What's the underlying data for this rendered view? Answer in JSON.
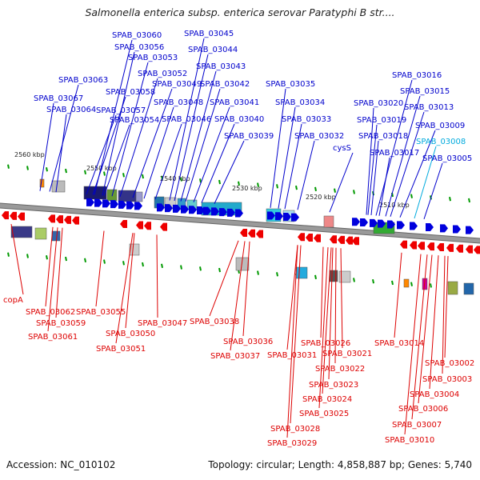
{
  "title": "Salmonella enterica subsp. enterica serovar Paratyphi B str....",
  "footer": {
    "accession": "Accession: NC_010102",
    "summary": "Topology: circular; Length: 4,858,887 bp; Genes: 5,740"
  },
  "colors": {
    "forward_label": "#0000cc",
    "reverse_label": "#dd0000",
    "highlight_label": "#00aadd",
    "forward_arrow": "#0000dd",
    "reverse_arrow": "#ee0000",
    "backbone": "#888888",
    "tick": "#009900"
  },
  "scale_labels": [
    "2560 kbp",
    "2550 kbp",
    "2540 kbp",
    "2530 kbp",
    "2520 kbp",
    "2510 kbp"
  ],
  "top_labels": [
    {
      "text": "SPAB_03060"
    },
    {
      "text": "SPAB_03045"
    },
    {
      "text": "SPAB_03056"
    },
    {
      "text": "SPAB_03044"
    },
    {
      "text": "SPAB_03053"
    },
    {
      "text": "SPAB_03043"
    },
    {
      "text": "SPAB_03063"
    },
    {
      "text": "SPAB_03052"
    },
    {
      "text": "SPAB_03049"
    },
    {
      "text": "SPAB_03042"
    },
    {
      "text": "SPAB_03035"
    },
    {
      "text": "SPAB_03016"
    },
    {
      "text": "SPAB_03058"
    },
    {
      "text": "SPAB_03015"
    },
    {
      "text": "SPAB_03067"
    },
    {
      "text": "SPAB_03048"
    },
    {
      "text": "SPAB_03041"
    },
    {
      "text": "SPAB_03034"
    },
    {
      "text": "SPAB_03020"
    },
    {
      "text": "SPAB_03013"
    },
    {
      "text": "SPAB_03064"
    },
    {
      "text": "SPAB_03057"
    },
    {
      "text": "SPAB_03054"
    },
    {
      "text": "SPAB_03046"
    },
    {
      "text": "SPAB_03040"
    },
    {
      "text": "SPAB_03033"
    },
    {
      "text": "SPAB_03019"
    },
    {
      "text": "SPAB_03009"
    },
    {
      "text": "SPAB_03039"
    },
    {
      "text": "SPAB_03032"
    },
    {
      "text": "SPAB_03018"
    },
    {
      "text": "SPAB_03008",
      "highlight": true
    },
    {
      "text": "cysS"
    },
    {
      "text": "SPAB_03017"
    },
    {
      "text": "SPAB_03005"
    }
  ],
  "bottom_labels": [
    {
      "text": "copA"
    },
    {
      "text": "SPAB_03062"
    },
    {
      "text": "SPAB_03055"
    },
    {
      "text": "SPAB_03059"
    },
    {
      "text": "SPAB_03047"
    },
    {
      "text": "SPAB_03038"
    },
    {
      "text": "SPAB_03050"
    },
    {
      "text": "SPAB_03061"
    },
    {
      "text": "SPAB_03036"
    },
    {
      "text": "SPAB_03026"
    },
    {
      "text": "SPAB_03014"
    },
    {
      "text": "SPAB_03051"
    },
    {
      "text": "SPAB_03037"
    },
    {
      "text": "SPAB_03031"
    },
    {
      "text": "SPAB_03021"
    },
    {
      "text": "SPAB_03002"
    },
    {
      "text": "SPAB_03022"
    },
    {
      "text": "SPAB_03003"
    },
    {
      "text": "SPAB_03023"
    },
    {
      "text": "SPAB_03004"
    },
    {
      "text": "SPAB_03024"
    },
    {
      "text": "SPAB_03006"
    },
    {
      "text": "SPAB_03025"
    },
    {
      "text": "SPAB_03007"
    },
    {
      "text": "SPAB_03028"
    },
    {
      "text": "SPAB_03010"
    },
    {
      "text": "SPAB_03029"
    }
  ]
}
